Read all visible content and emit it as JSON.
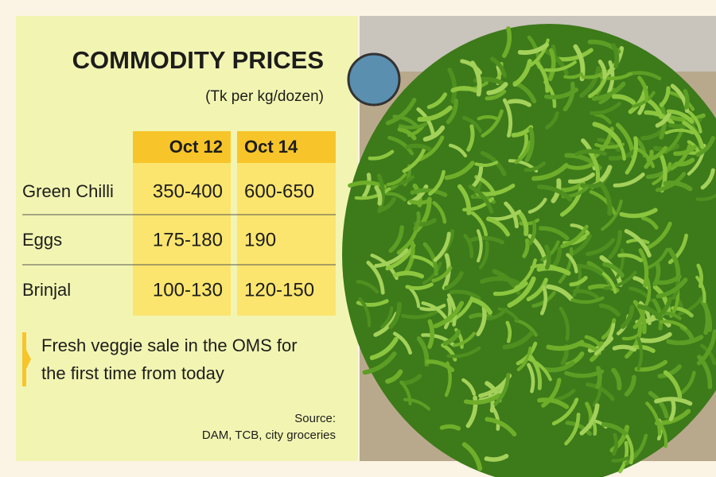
{
  "header": {
    "title": "COMMODITY PRICES",
    "subtitle": "(Tk per kg/dozen)"
  },
  "table": {
    "columns": [
      "Oct 12",
      "Oct 14"
    ],
    "rows": [
      [
        "Green Chilli",
        "350-400",
        "600-650"
      ],
      [
        "Eggs",
        "175-180",
        "190"
      ],
      [
        "Brinjal",
        "100-130",
        "120-150"
      ]
    ]
  },
  "note": [
    "Fresh veggie sale in the OMS for",
    "the first time from today"
  ],
  "source": [
    "Source:",
    "DAM, TCB, city groceries"
  ]
}
